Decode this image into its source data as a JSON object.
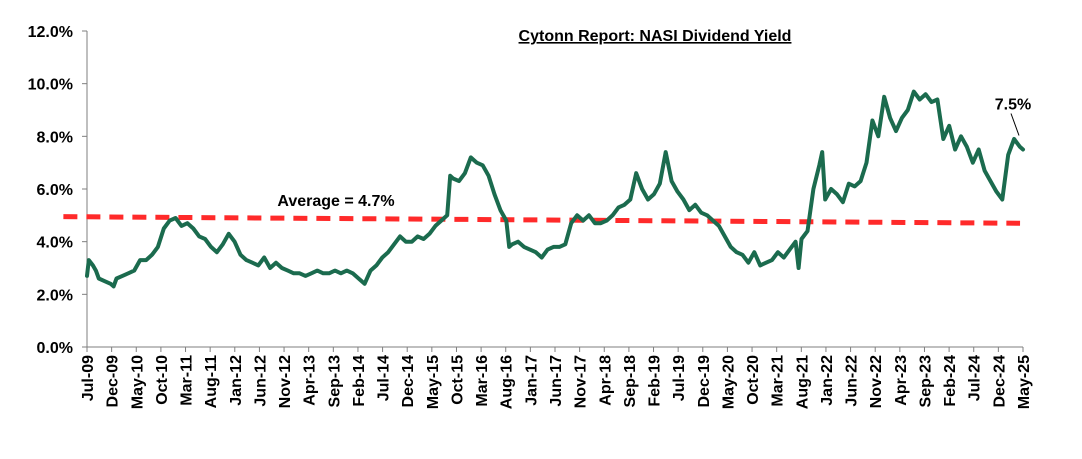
{
  "chart_data": {
    "type": "line",
    "title": "Cytonn Report: NASI Dividend Yield",
    "xlabel": "",
    "ylabel": "",
    "ylim": [
      0,
      12
    ],
    "grid": false,
    "legend": "none",
    "colors": {
      "series": "#1B6B4E",
      "average": "#FF2A2A",
      "axis": "#7F7F7F"
    },
    "yticks": [
      "0.0%",
      "2.0%",
      "4.0%",
      "6.0%",
      "8.0%",
      "10.0%",
      "12.0%"
    ],
    "ytick_values": [
      0,
      2,
      4,
      6,
      8,
      10,
      12
    ],
    "categories": [
      "Jul-09",
      "Dec-09",
      "May-10",
      "Oct-10",
      "Mar-11",
      "Aug-11",
      "Jan-12",
      "Jun-12",
      "Nov-12",
      "Apr-13",
      "Sep-13",
      "Feb-14",
      "Jul-14",
      "Dec-14",
      "May-15",
      "Oct-15",
      "Mar-16",
      "Aug-16",
      "Jan-17",
      "Jun-17",
      "Nov-17",
      "Apr-18",
      "Sep-18",
      "Feb-19",
      "Jul-19",
      "Dec-19",
      "May-20",
      "Oct-20",
      "Mar-21",
      "Aug-21",
      "Jan-22",
      "Jun-22",
      "Nov-22",
      "Apr-23",
      "Sep-23",
      "Feb-24",
      "Jul-24",
      "Dec-24",
      "May-25"
    ],
    "series": [
      {
        "values": [
          [
            0,
            2.7
          ],
          [
            0.3,
            3.3
          ],
          [
            1,
            3.1
          ],
          [
            1.5,
            2.9
          ],
          [
            2,
            2.6
          ],
          [
            3,
            2.5
          ],
          [
            4,
            2.4
          ],
          [
            4.5,
            2.3
          ],
          [
            5,
            2.6
          ],
          [
            6,
            2.7
          ],
          [
            7,
            2.8
          ],
          [
            8,
            2.9
          ],
          [
            9,
            3.3
          ],
          [
            10,
            3.3
          ],
          [
            11,
            3.5
          ],
          [
            12,
            3.8
          ],
          [
            13,
            4.5
          ],
          [
            14,
            4.8
          ],
          [
            15,
            4.9
          ],
          [
            16,
            4.6
          ],
          [
            17,
            4.7
          ],
          [
            18,
            4.5
          ],
          [
            19,
            4.2
          ],
          [
            20,
            4.1
          ],
          [
            21,
            3.8
          ],
          [
            22,
            3.6
          ],
          [
            23,
            3.9
          ],
          [
            24,
            4.3
          ],
          [
            25,
            4.0
          ],
          [
            26,
            3.5
          ],
          [
            27,
            3.3
          ],
          [
            28,
            3.2
          ],
          [
            29,
            3.1
          ],
          [
            30,
            3.4
          ],
          [
            31,
            3.0
          ],
          [
            32,
            3.2
          ],
          [
            33,
            3.0
          ],
          [
            34,
            2.9
          ],
          [
            35,
            2.8
          ],
          [
            36,
            2.8
          ],
          [
            37,
            2.7
          ],
          [
            38,
            2.8
          ],
          [
            39,
            2.9
          ],
          [
            40,
            2.8
          ],
          [
            41,
            2.8
          ],
          [
            42,
            2.9
          ],
          [
            43,
            2.8
          ],
          [
            44,
            2.9
          ],
          [
            45,
            2.8
          ],
          [
            46,
            2.6
          ],
          [
            47,
            2.4
          ],
          [
            48,
            2.9
          ],
          [
            49,
            3.1
          ],
          [
            50,
            3.4
          ],
          [
            51,
            3.6
          ],
          [
            52,
            3.9
          ],
          [
            53,
            4.2
          ],
          [
            54,
            4.0
          ],
          [
            55,
            4.0
          ],
          [
            56,
            4.2
          ],
          [
            57,
            4.1
          ],
          [
            58,
            4.3
          ],
          [
            59,
            4.6
          ],
          [
            60,
            4.8
          ],
          [
            61,
            5.0
          ],
          [
            61.5,
            6.5
          ],
          [
            62,
            6.4
          ],
          [
            63,
            6.3
          ],
          [
            64,
            6.6
          ],
          [
            65,
            7.2
          ],
          [
            66,
            7.0
          ],
          [
            67,
            6.9
          ],
          [
            68,
            6.5
          ],
          [
            69,
            5.8
          ],
          [
            70,
            5.2
          ],
          [
            71,
            4.8
          ],
          [
            71.5,
            3.8
          ],
          [
            72,
            3.9
          ],
          [
            73,
            4.0
          ],
          [
            74,
            3.8
          ],
          [
            75,
            3.7
          ],
          [
            76,
            3.6
          ],
          [
            77,
            3.4
          ],
          [
            78,
            3.7
          ],
          [
            79,
            3.8
          ],
          [
            80,
            3.8
          ],
          [
            81,
            3.9
          ],
          [
            82,
            4.7
          ],
          [
            83,
            5.0
          ],
          [
            84,
            4.8
          ],
          [
            85,
            5.0
          ],
          [
            86,
            4.7
          ],
          [
            87,
            4.7
          ],
          [
            88,
            4.8
          ],
          [
            89,
            5.0
          ],
          [
            90,
            5.3
          ],
          [
            91,
            5.4
          ],
          [
            92,
            5.6
          ],
          [
            93,
            6.6
          ],
          [
            94,
            6.0
          ],
          [
            95,
            5.6
          ],
          [
            96,
            5.8
          ],
          [
            97,
            6.2
          ],
          [
            98,
            7.4
          ],
          [
            99,
            6.3
          ],
          [
            100,
            5.9
          ],
          [
            101,
            5.6
          ],
          [
            102,
            5.2
          ],
          [
            103,
            5.4
          ],
          [
            104,
            5.1
          ],
          [
            105,
            5.0
          ],
          [
            106,
            4.8
          ],
          [
            107,
            4.6
          ],
          [
            108,
            4.2
          ],
          [
            109,
            3.8
          ],
          [
            110,
            3.6
          ],
          [
            111,
            3.5
          ],
          [
            112,
            3.2
          ],
          [
            113,
            3.6
          ],
          [
            114,
            3.1
          ],
          [
            115,
            3.2
          ],
          [
            116,
            3.3
          ],
          [
            117,
            3.6
          ],
          [
            118,
            3.4
          ],
          [
            119,
            3.7
          ],
          [
            120,
            4.0
          ],
          [
            120.5,
            3.0
          ],
          [
            121,
            4.1
          ],
          [
            122,
            4.4
          ],
          [
            123,
            6.0
          ],
          [
            124,
            6.9
          ],
          [
            124.5,
            7.4
          ],
          [
            125,
            5.6
          ],
          [
            126,
            6.0
          ],
          [
            127,
            5.8
          ],
          [
            128,
            5.5
          ],
          [
            129,
            6.2
          ],
          [
            130,
            6.1
          ],
          [
            131,
            6.3
          ],
          [
            132,
            7.0
          ],
          [
            133,
            8.6
          ],
          [
            134,
            8.0
          ],
          [
            135,
            9.5
          ],
          [
            136,
            8.7
          ],
          [
            137,
            8.2
          ],
          [
            138,
            8.7
          ],
          [
            139,
            9.0
          ],
          [
            140,
            9.7
          ],
          [
            141,
            9.4
          ],
          [
            142,
            9.6
          ],
          [
            143,
            9.3
          ],
          [
            144,
            9.4
          ],
          [
            145,
            7.9
          ],
          [
            146,
            8.4
          ],
          [
            147,
            7.5
          ],
          [
            148,
            8.0
          ],
          [
            149,
            7.6
          ],
          [
            150,
            7.0
          ],
          [
            151,
            7.5
          ],
          [
            152,
            6.7
          ],
          [
            153,
            6.3
          ],
          [
            154,
            5.9
          ],
          [
            155,
            5.6
          ],
          [
            156,
            7.3
          ],
          [
            157,
            7.9
          ],
          [
            158,
            7.6
          ],
          [
            158.5,
            7.5
          ]
        ]
      }
    ],
    "average": {
      "label": "Average = 4.7%",
      "start": 4.95,
      "end": 4.7
    },
    "annotations": [
      {
        "text": "7.5%",
        "value": 7.5
      }
    ]
  }
}
